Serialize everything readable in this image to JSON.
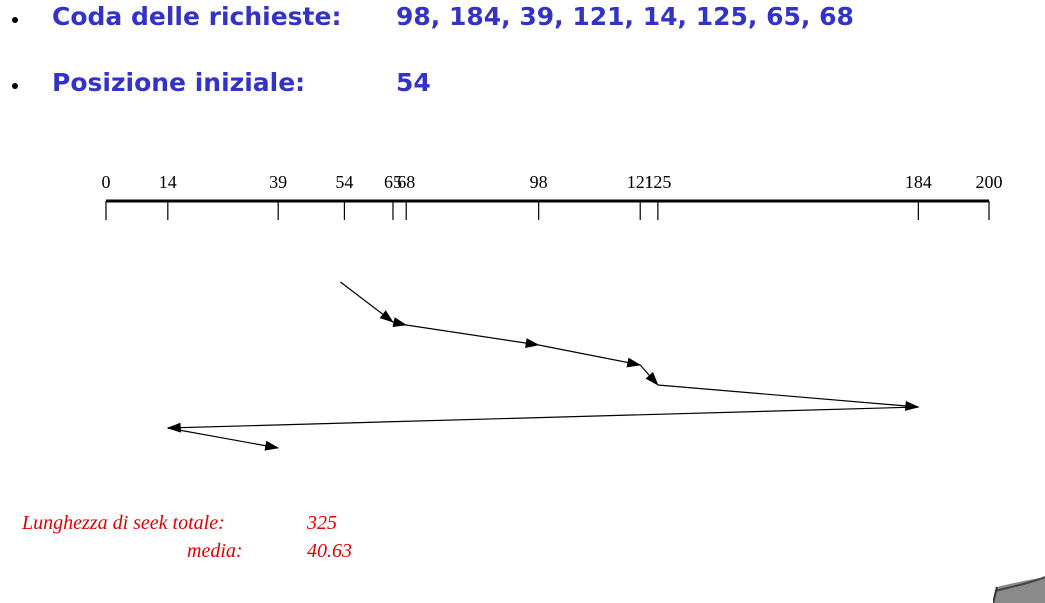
{
  "bullets": [
    {
      "label": "Coda delle richieste:",
      "value": "98, 184, 39, 121, 14, 125, 65, 68"
    },
    {
      "label": "Posizione iniziale:",
      "value": "54"
    }
  ],
  "diagram": {
    "axis_min": 0,
    "axis_max": 200,
    "ticks": [
      "0",
      "14",
      "39",
      "54",
      "65",
      "68",
      "98",
      "121",
      "125",
      "184",
      "200"
    ],
    "tick_values": [
      0,
      14,
      39,
      54,
      65,
      68,
      98,
      121,
      125,
      184,
      200
    ],
    "path_sequence": [
      54,
      65,
      68,
      98,
      121,
      125,
      184,
      14,
      39
    ],
    "line_color": "#000000"
  },
  "stats": {
    "total_label": "Lunghezza di seek totale:",
    "total_value": "325",
    "avg_label": "media:",
    "avg_value": "40.63",
    "color": "#e00000"
  },
  "theme": {
    "heading_color": "#3333c8"
  }
}
